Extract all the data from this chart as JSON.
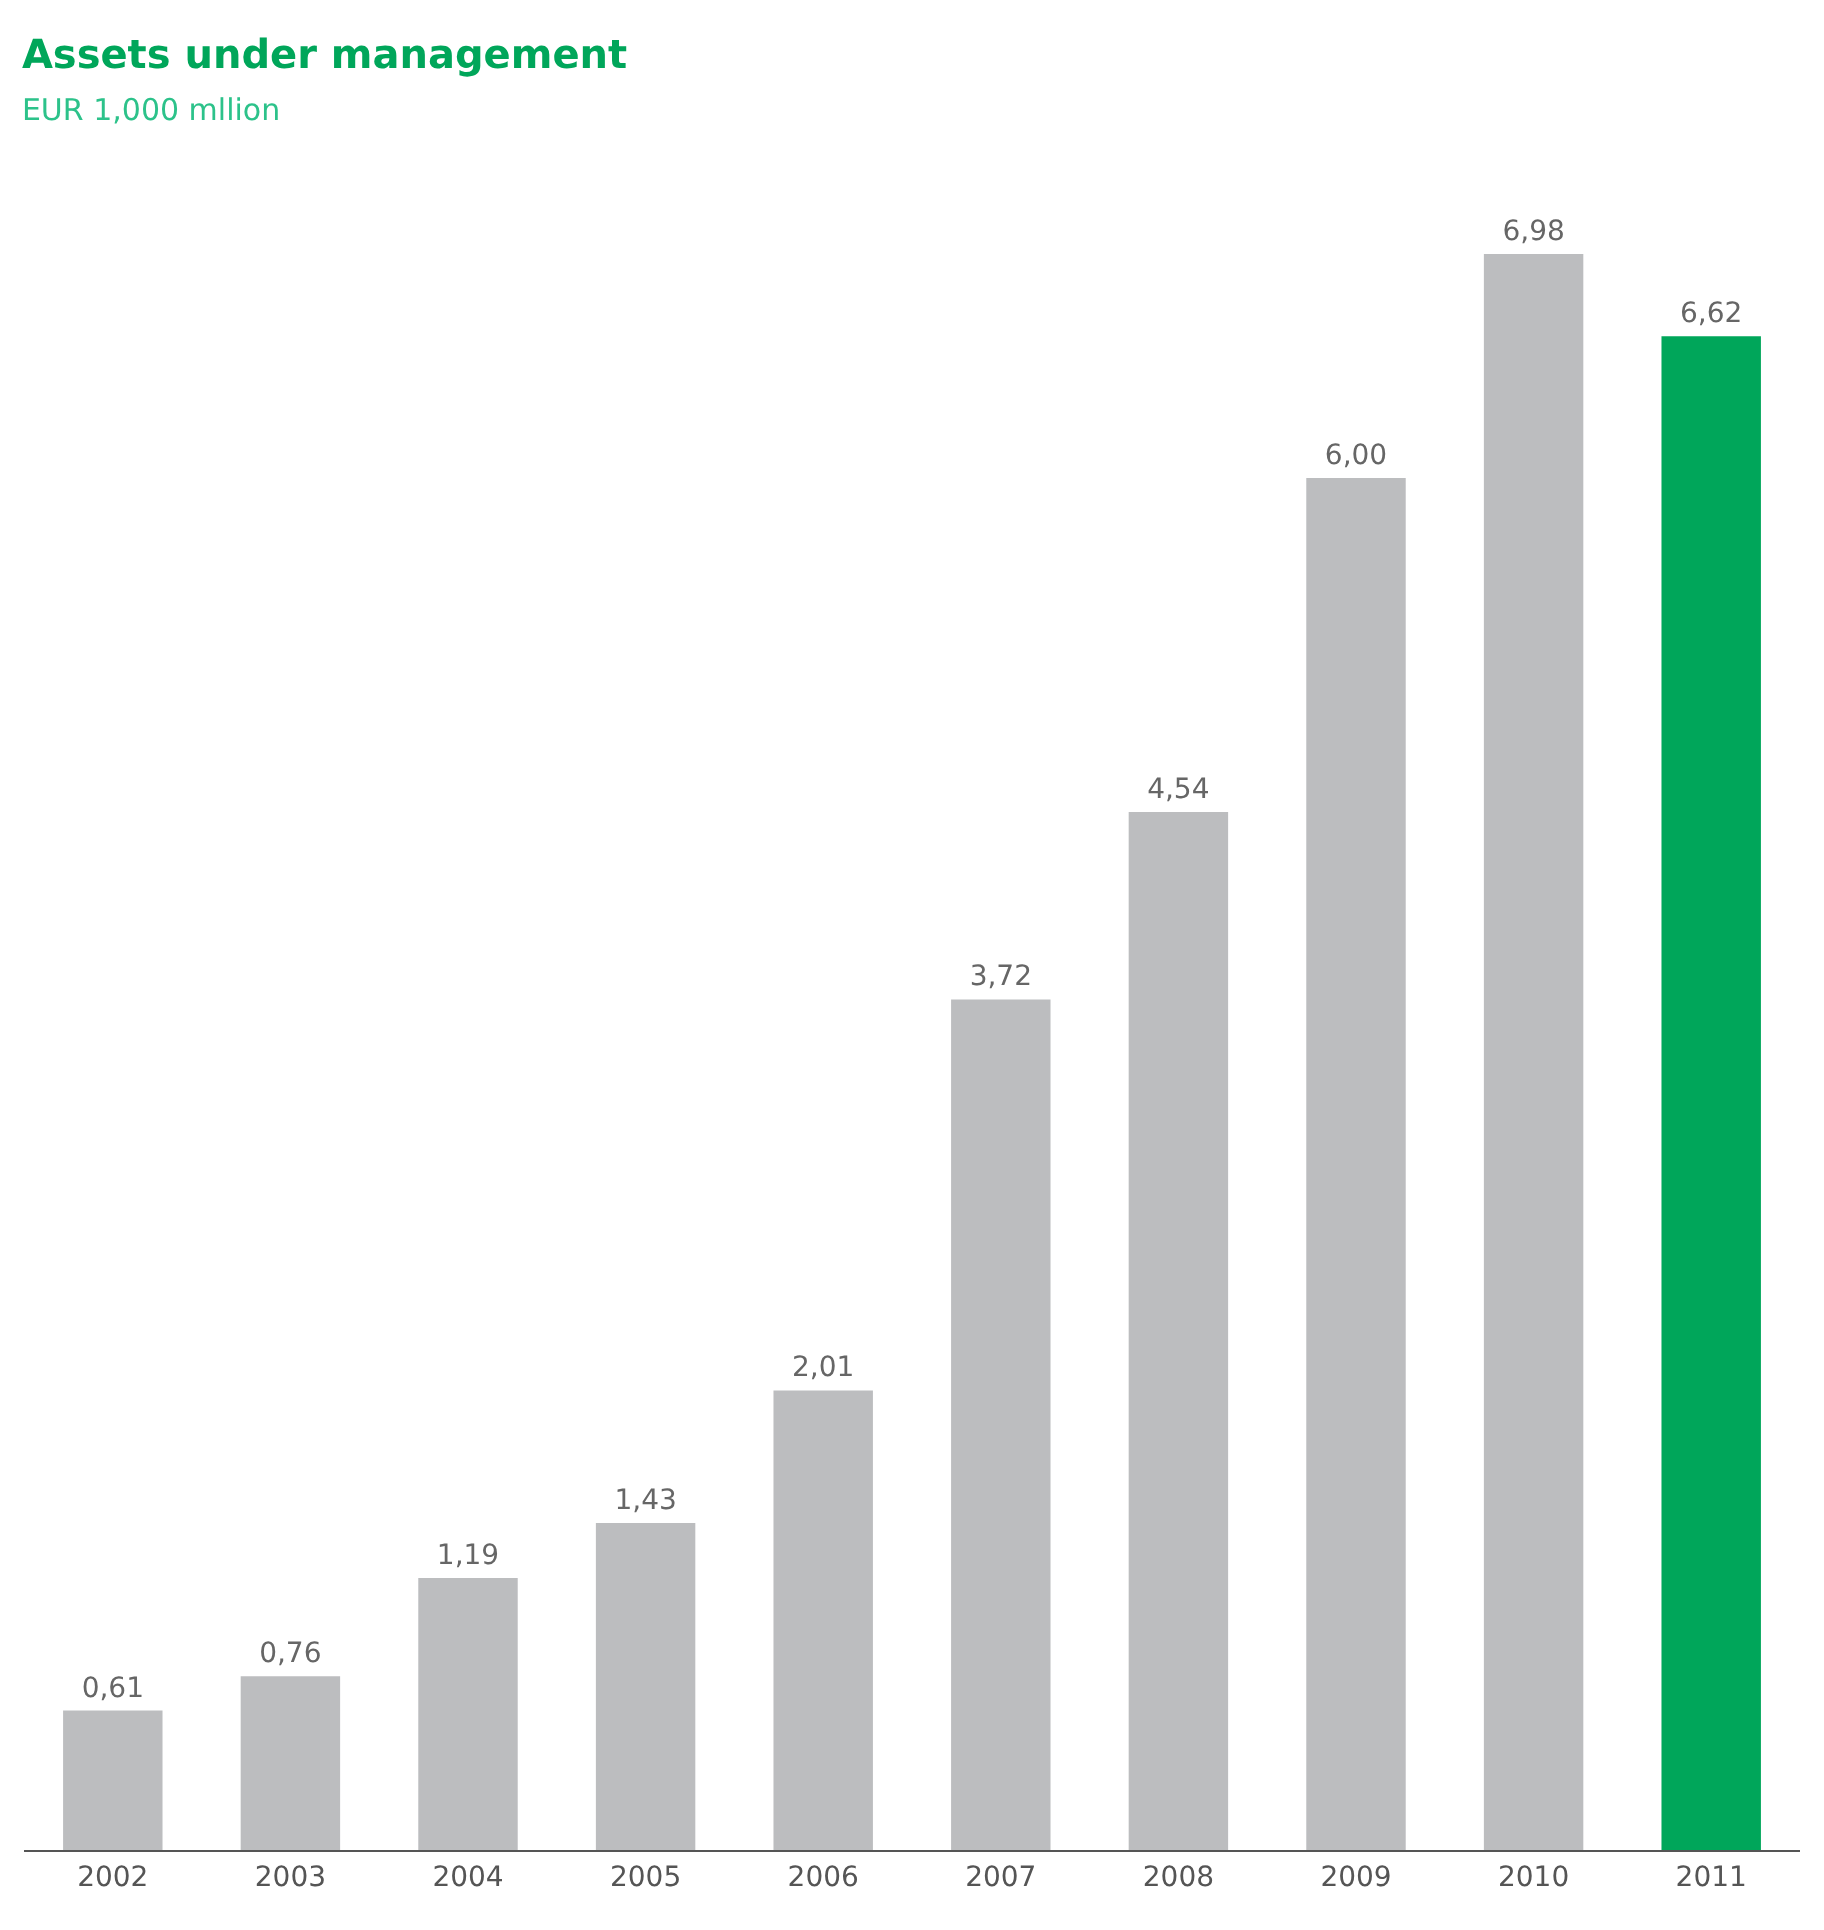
{
  "chart_data": {
    "type": "bar",
    "title": "Assets under management",
    "subtitle": "EUR 1,000 mllion",
    "categories": [
      "2002",
      "2003",
      "2004",
      "2005",
      "2006",
      "2007",
      "2008",
      "2009",
      "2010",
      "2011"
    ],
    "values": [
      0.61,
      0.76,
      1.19,
      1.43,
      2.01,
      3.72,
      4.54,
      6.0,
      6.98,
      6.62
    ],
    "value_labels": [
      "0,61",
      "0,76",
      "1,19",
      "1,43",
      "2,01",
      "3,72",
      "4,54",
      "6,00",
      "6,98",
      "6,62"
    ],
    "colors": [
      "#bcbdbf",
      "#bcbdbf",
      "#bcbdbf",
      "#bcbdbf",
      "#bcbdbf",
      "#bcbdbf",
      "#bcbdbf",
      "#bcbdbf",
      "#bcbdbf",
      "#00a65a"
    ],
    "legend": false
  }
}
